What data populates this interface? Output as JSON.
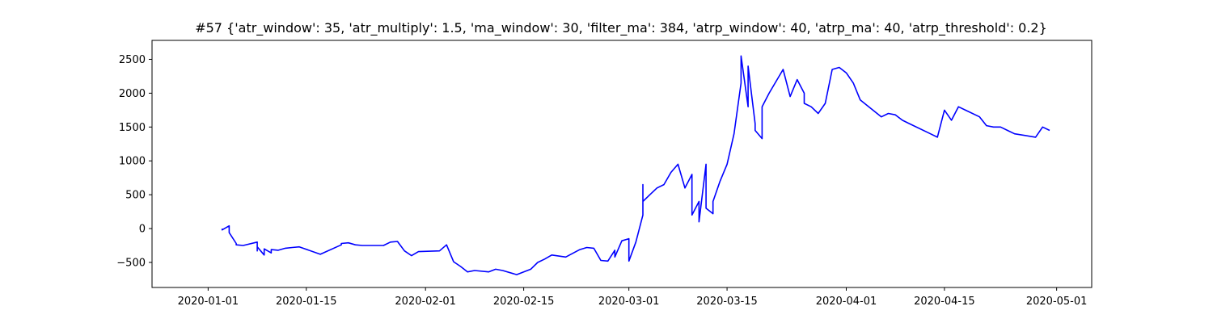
{
  "chart_data": {
    "type": "line",
    "title": "#57 {'atr_window': 35, 'atr_multiply': 1.5, 'ma_window': 30, 'filter_ma': 384, 'atrp_window': 40, 'atrp_ma': 40, 'atrp_threshold': 0.2}",
    "xlabel": "",
    "ylabel": "",
    "x_ticks": [
      "2020-01-01",
      "2020-01-15",
      "2020-02-01",
      "2020-02-15",
      "2020-03-01",
      "2020-03-15",
      "2020-04-01",
      "2020-04-15",
      "2020-05-01"
    ],
    "y_ticks": [
      -500,
      0,
      500,
      1000,
      1500,
      2000,
      2500
    ],
    "xlim": [
      "2019-12-24",
      "2020-05-06"
    ],
    "ylim": [
      -870,
      2780
    ],
    "grid": false,
    "line_color": "#0000ff",
    "series": [
      {
        "x": [
          "2020-01-03",
          "2020-01-03",
          "2020-01-04",
          "2020-01-04",
          "2020-01-05",
          "2020-01-05",
          "2020-01-06",
          "2020-01-08",
          "2020-01-08",
          "2020-01-08",
          "2020-01-09",
          "2020-01-09",
          "2020-01-10",
          "2020-01-10",
          "2020-01-11",
          "2020-01-12",
          "2020-01-13",
          "2020-01-14",
          "2020-01-17",
          "2020-01-20",
          "2020-01-20",
          "2020-01-21",
          "2020-01-22",
          "2020-01-23",
          "2020-01-24",
          "2020-01-26",
          "2020-01-27",
          "2020-01-28",
          "2020-01-29",
          "2020-01-30",
          "2020-01-31",
          "2020-02-03",
          "2020-02-04",
          "2020-02-05",
          "2020-02-06",
          "2020-02-07",
          "2020-02-08",
          "2020-02-10",
          "2020-02-11",
          "2020-02-12",
          "2020-02-14",
          "2020-02-16",
          "2020-02-17",
          "2020-02-18",
          "2020-02-19",
          "2020-02-21",
          "2020-02-23",
          "2020-02-24",
          "2020-02-25",
          "2020-02-26",
          "2020-02-27",
          "2020-02-28",
          "2020-02-28",
          "2020-02-29",
          "2020-03-01",
          "2020-03-01",
          "2020-03-02",
          "2020-03-03",
          "2020-03-03",
          "2020-03-03",
          "2020-03-04",
          "2020-03-05",
          "2020-03-06",
          "2020-03-07",
          "2020-03-08",
          "2020-03-09",
          "2020-03-10",
          "2020-03-10",
          "2020-03-11",
          "2020-03-11",
          "2020-03-12",
          "2020-03-12",
          "2020-03-13",
          "2020-03-13",
          "2020-03-14",
          "2020-03-15",
          "2020-03-16",
          "2020-03-17",
          "2020-03-17",
          "2020-03-18",
          "2020-03-18",
          "2020-03-19",
          "2020-03-19",
          "2020-03-20",
          "2020-03-20",
          "2020-03-21",
          "2020-03-23",
          "2020-03-24",
          "2020-03-25",
          "2020-03-26",
          "2020-03-26",
          "2020-03-27",
          "2020-03-28",
          "2020-03-29",
          "2020-03-30",
          "2020-03-31",
          "2020-04-01",
          "2020-04-02",
          "2020-04-03",
          "2020-04-06",
          "2020-04-07",
          "2020-04-08",
          "2020-04-09",
          "2020-04-10",
          "2020-04-13",
          "2020-04-14",
          "2020-04-15",
          "2020-04-16",
          "2020-04-17",
          "2020-04-18",
          "2020-04-20",
          "2020-04-21",
          "2020-04-22",
          "2020-04-23",
          "2020-04-24",
          "2020-04-25",
          "2020-04-28",
          "2020-04-29",
          "2020-04-30"
        ],
        "values": [
          0,
          -20,
          40,
          -60,
          -220,
          -240,
          -250,
          -200,
          -330,
          -270,
          -390,
          -300,
          -360,
          -310,
          -320,
          -290,
          -280,
          -270,
          -380,
          -240,
          -220,
          -210,
          -240,
          -250,
          -250,
          -250,
          -200,
          -190,
          -330,
          -400,
          -340,
          -330,
          -240,
          -490,
          -560,
          -640,
          -620,
          -640,
          -600,
          -620,
          -680,
          -600,
          -500,
          -450,
          -390,
          -420,
          -310,
          -280,
          -290,
          -470,
          -480,
          -320,
          -420,
          -180,
          -150,
          -480,
          -200,
          200,
          650,
          400,
          500,
          600,
          650,
          830,
          950,
          600,
          800,
          200,
          400,
          100,
          950,
          300,
          220,
          400,
          700,
          950,
          1400,
          2150,
          2550,
          1800,
          2400,
          1550,
          1450,
          1330,
          1800,
          2000,
          2350,
          1950,
          2200,
          2000,
          1850,
          1800,
          1700,
          1850,
          2350,
          2380,
          2300,
          2150,
          1900,
          1650,
          1700,
          1680,
          1600,
          1550,
          1400,
          1350,
          1750,
          1600,
          1800,
          1750,
          1650,
          1520,
          1500,
          1500,
          1450,
          1400,
          1350,
          1500,
          1450
        ]
      }
    ]
  }
}
